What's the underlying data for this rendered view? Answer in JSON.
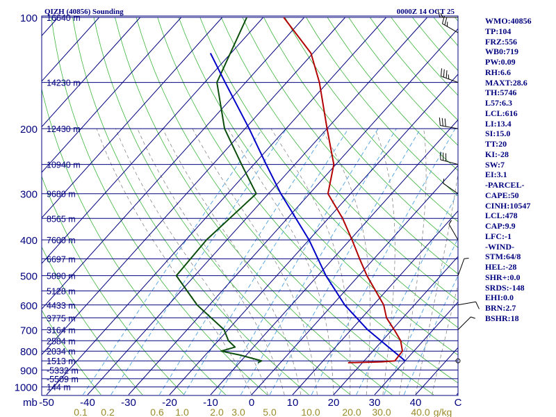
{
  "header": {
    "station": "QIZH (40856) Sounding",
    "time": "0000Z 14 OCT 25"
  },
  "colors": {
    "isobar": "#00007f",
    "isotherm": "#00007f",
    "dry_adiabat": "#3cb43c",
    "moist_adiabat": "#888888",
    "mixing_ratio": "#4aa0e0",
    "temperature": "#b30000",
    "dewpoint": "#0b4d0b",
    "parcel": "#0000c8",
    "text": "#00007f",
    "mix_label": "#9a8a2a"
  },
  "chart_data": {
    "type": "skew-t",
    "title": "QIZH (40856) Sounding",
    "pressure_levels": [
      100,
      200,
      300,
      400,
      500,
      600,
      700,
      800,
      900,
      1000
    ],
    "x_tick_labels": [
      "-50",
      "-40",
      "-30",
      "-20",
      "-10",
      "0",
      "10",
      "20",
      "30",
      "40"
    ],
    "x_axis_prefix": "mb",
    "x_axis_suffix": "C",
    "xlim": [
      -50,
      50
    ],
    "ylim": [
      1050,
      100
    ],
    "height_labels": [
      {
        "p": 100,
        "text": "16640 m"
      },
      {
        "p": 150,
        "text": "14230 m"
      },
      {
        "p": 200,
        "text": "12430 m"
      },
      {
        "p": 250,
        "text": "10940 m"
      },
      {
        "p": 300,
        "text": "9680 m"
      },
      {
        "p": 350,
        "text": "8565 m"
      },
      {
        "p": 400,
        "text": "7600 m"
      },
      {
        "p": 450,
        "text": "6697 m"
      },
      {
        "p": 500,
        "text": "5890 m"
      },
      {
        "p": 550,
        "text": "5128 m"
      },
      {
        "p": 600,
        "text": "4433 m"
      },
      {
        "p": 650,
        "text": "3775 m"
      },
      {
        "p": 700,
        "text": "3164 m"
      },
      {
        "p": 750,
        "text": "2584 m"
      },
      {
        "p": 800,
        "text": "2034 m"
      },
      {
        "p": 850,
        "text": "1513 m"
      },
      {
        "p": 900,
        "text": "-5332 m"
      },
      {
        "p": 950,
        "text": "-5509 m"
      },
      {
        "p": 1000,
        "text": "144 m"
      }
    ],
    "mixing_ratio_labels": [
      "0.1",
      "0.2",
      "0.6",
      "1.0",
      "2.0",
      "3.0",
      "5.0",
      "10.0",
      "20.0",
      "30.0",
      "40.0",
      "g/kg"
    ],
    "mixing_ratios": [
      0.1,
      0.2,
      0.6,
      1.0,
      2.0,
      3.0,
      5.0,
      10.0,
      20.0,
      30.0,
      40.0
    ],
    "temperature": [
      {
        "p": 860,
        "t": 16.5
      },
      {
        "p": 855,
        "t": 24.5
      },
      {
        "p": 850,
        "t": 27.5
      },
      {
        "p": 800,
        "t": 27.2
      },
      {
        "p": 750,
        "t": 24.5
      },
      {
        "p": 700,
        "t": 20.5
      },
      {
        "p": 650,
        "t": 16.0
      },
      {
        "p": 600,
        "t": 12.5
      },
      {
        "p": 550,
        "t": 7.5
      },
      {
        "p": 500,
        "t": 2.0
      },
      {
        "p": 450,
        "t": -3.5
      },
      {
        "p": 400,
        "t": -9.5
      },
      {
        "p": 350,
        "t": -16.5
      },
      {
        "p": 300,
        "t": -25.5
      },
      {
        "p": 250,
        "t": -30.5
      },
      {
        "p": 200,
        "t": -40.0
      },
      {
        "p": 150,
        "t": -52.0
      },
      {
        "p": 125,
        "t": -60.5
      },
      {
        "p": 100,
        "t": -75.0
      }
    ],
    "dewpoint": [
      {
        "p": 860,
        "t": -5.5
      },
      {
        "p": 850,
        "t": -5.0
      },
      {
        "p": 820,
        "t": -11.5
      },
      {
        "p": 800,
        "t": -17.0
      },
      {
        "p": 780,
        "t": -14.5
      },
      {
        "p": 750,
        "t": -17.5
      },
      {
        "p": 700,
        "t": -21.0
      },
      {
        "p": 600,
        "t": -33.0
      },
      {
        "p": 500,
        "t": -44.5
      },
      {
        "p": 400,
        "t": -45.0
      },
      {
        "p": 300,
        "t": -43.0
      },
      {
        "p": 250,
        "t": -53.0
      },
      {
        "p": 200,
        "t": -65.0
      },
      {
        "p": 150,
        "t": -77.0
      },
      {
        "p": 100,
        "t": -84.0
      }
    ],
    "parcel": [
      {
        "p": 850,
        "t": 30.0
      },
      {
        "p": 800,
        "t": 25.0
      },
      {
        "p": 700,
        "t": 14.0
      },
      {
        "p": 600,
        "t": 3.0
      },
      {
        "p": 500,
        "t": -8.0
      },
      {
        "p": 400,
        "t": -20.0
      },
      {
        "p": 300,
        "t": -37.0
      },
      {
        "p": 250,
        "t": -47.0
      },
      {
        "p": 200,
        "t": -59.0
      },
      {
        "p": 150,
        "t": -75.0
      },
      {
        "p": 125,
        "t": -85.0
      }
    ],
    "wind_barbs": [
      {
        "p": 100,
        "dir": 270,
        "spd": 15
      },
      {
        "p": 110,
        "dir": 300,
        "spd": 25
      },
      {
        "p": 150,
        "dir": 290,
        "spd": 35
      },
      {
        "p": 200,
        "dir": 280,
        "spd": 30
      },
      {
        "p": 250,
        "dir": 285,
        "spd": 30
      },
      {
        "p": 300,
        "dir": 305,
        "spd": 5
      },
      {
        "p": 400,
        "dir": 330,
        "spd": 5
      },
      {
        "p": 500,
        "dir": 20,
        "spd": 5
      },
      {
        "p": 600,
        "dir": 80,
        "spd": 10
      },
      {
        "p": 700,
        "dir": 45,
        "spd": 5
      },
      {
        "p": 850,
        "dir": 90,
        "spd": 0
      }
    ]
  },
  "indices": [
    "WMO:40856",
    "TP:104",
    "FRZ:556",
    "WB0:719",
    "PW:0.09",
    "RH:6.6",
    "MAXT:28.6",
    "TH:5746",
    "L57:6.3",
    "LCL:616",
    "LI:13.4",
    "SI:15.0",
    "TT:20",
    "KI:-28",
    "SW:7",
    "EI:3.1",
    "-PARCEL-",
    "CAPE:50",
    "CINH:10547",
    "LCL:478",
    "CAP:9.9",
    "LFC:-1",
    "-WIND-",
    "STM:64/8",
    "HEL:-28",
    "SHR+:0.0",
    "SRDS:-148",
    "EHI:0.0",
    "BRN:2.7",
    "BSHR:18"
  ]
}
